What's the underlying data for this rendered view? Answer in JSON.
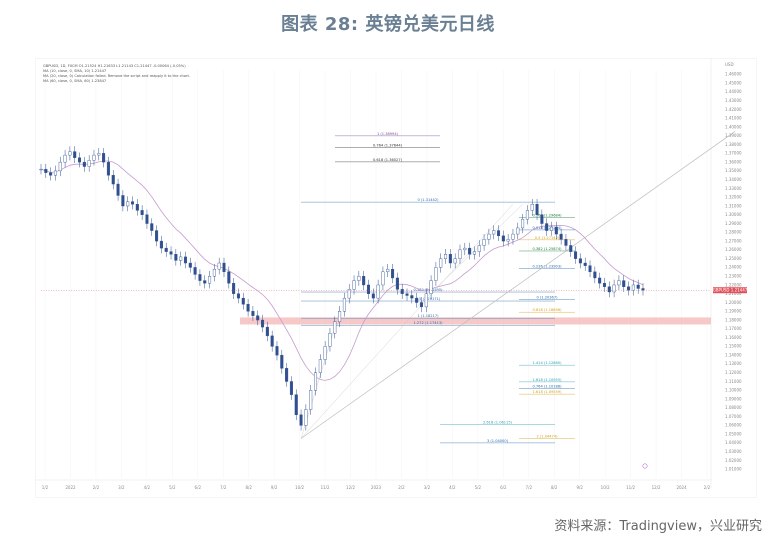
{
  "title": "图表 28: 英镑兑美元日线",
  "source": "资料来源：Tradingview，兴业研究",
  "colors": {
    "candle": "#2f4f8f",
    "ma": "#c59bd0",
    "trend": "#bdbdbd",
    "zone": "#f4b6b6",
    "price_tag": "#e0505a"
  },
  "chart_data": {
    "type": "line",
    "title": "",
    "currency": "USD",
    "x_ticks": [
      "1/2",
      "2022",
      "2/2",
      "3/2",
      "4/2",
      "5/2",
      "6/2",
      "7/2",
      "8/2",
      "9/2",
      "10/2",
      "11/2",
      "12/2",
      "2023",
      "2/2",
      "3/2",
      "4/2",
      "5/2",
      "6/2",
      "7/2",
      "8/2",
      "9/2",
      "10/2",
      "11/2",
      "12/2",
      "2024",
      "2/2"
    ],
    "y_ticks": [
      "1.46000",
      "1.45000",
      "1.44000",
      "1.43000",
      "1.42000",
      "1.41000",
      "1.40000",
      "1.39000",
      "1.38000",
      "1.37000",
      "1.36000",
      "1.35000",
      "1.34000",
      "1.33000",
      "1.32000",
      "1.31000",
      "1.30000",
      "1.29000",
      "1.28000",
      "1.27000",
      "1.26000",
      "1.25000",
      "1.24000",
      "1.23000",
      "1.22000",
      "1.21000",
      "1.20000",
      "1.19000",
      "1.18000",
      "1.17000",
      "1.16000",
      "1.15000",
      "1.14000",
      "1.13000",
      "1.12000",
      "1.11000",
      "1.10000",
      "1.09000",
      "1.08000",
      "1.07000",
      "1.06000",
      "1.05000",
      "1.04000",
      "1.03000",
      "1.02000",
      "1.01000"
    ],
    "ylim": [
      1.0,
      1.465
    ],
    "legend": [
      "GBPUSD, 1D, FXCM  O1.21524  H1.21633  L1.21143  C1.21447  -0.00064 (-0.05%)",
      "MA (10, close, 0, SMA, 10)  1.21447",
      "MA (20, close, 0) Calculation failed. Remove the script and reapply it to the chart.",
      "MA (60, close, 0, SMA, 60)  1.23847"
    ],
    "price_tag": "GBPUSD  1.21447",
    "series": [
      {
        "name": "GBPUSD",
        "x": [
          0,
          1,
          2,
          3,
          4,
          5,
          6,
          7,
          8,
          9,
          10,
          11,
          12,
          13,
          14,
          15,
          16,
          17,
          18,
          19,
          20,
          21,
          22,
          23,
          24,
          25,
          26,
          27,
          28,
          29,
          30,
          31,
          32,
          33,
          34,
          35,
          36,
          37,
          38,
          39,
          40,
          41,
          42,
          43,
          44,
          45,
          46,
          47,
          48,
          49,
          50,
          51,
          52,
          53,
          54,
          55,
          56,
          57,
          58,
          59,
          60,
          61,
          62,
          63,
          64,
          65,
          66,
          67,
          68,
          69,
          70,
          71,
          72,
          73,
          74,
          75,
          76,
          77,
          78,
          79,
          80,
          81,
          82,
          83,
          84,
          85,
          86,
          87,
          88,
          89,
          90,
          91,
          92,
          93,
          94,
          95,
          96,
          97,
          98,
          99,
          100,
          101,
          102,
          103,
          104,
          105,
          106,
          107,
          108,
          109,
          110,
          111,
          112,
          113,
          114,
          115,
          116,
          117,
          118,
          119,
          120,
          121,
          122,
          123,
          124,
          125
        ],
        "close": [
          1.352,
          1.348,
          1.345,
          1.35,
          1.36,
          1.368,
          1.372,
          1.365,
          1.36,
          1.355,
          1.362,
          1.368,
          1.37,
          1.36,
          1.345,
          1.335,
          1.322,
          1.31,
          1.315,
          1.312,
          1.305,
          1.3,
          1.29,
          1.282,
          1.27,
          1.262,
          1.258,
          1.255,
          1.248,
          1.252,
          1.245,
          1.24,
          1.232,
          1.225,
          1.222,
          1.23,
          1.238,
          1.245,
          1.235,
          1.222,
          1.21,
          1.205,
          1.198,
          1.19,
          1.185,
          1.18,
          1.172,
          1.162,
          1.15,
          1.14,
          1.125,
          1.11,
          1.095,
          1.072,
          1.06,
          1.078,
          1.1,
          1.12,
          1.135,
          1.15,
          1.165,
          1.178,
          1.19,
          1.205,
          1.215,
          1.225,
          1.23,
          1.22,
          1.21,
          1.205,
          1.22,
          1.235,
          1.238,
          1.228,
          1.215,
          1.21,
          1.208,
          1.205,
          1.2,
          1.195,
          1.21,
          1.225,
          1.24,
          1.25,
          1.255,
          1.245,
          1.25,
          1.26,
          1.262,
          1.255,
          1.258,
          1.265,
          1.272,
          1.278,
          1.282,
          1.276,
          1.27,
          1.272,
          1.278,
          1.285,
          1.295,
          1.305,
          1.312,
          1.3,
          1.29,
          1.282,
          1.286,
          1.278,
          1.272,
          1.265,
          1.258,
          1.25,
          1.245,
          1.242,
          1.235,
          1.228,
          1.222,
          1.218,
          1.212,
          1.22,
          1.225,
          1.218,
          1.214,
          1.22,
          1.216,
          1.214
        ]
      }
    ],
    "annotations": [
      "1 (1.38994)",
      "0.764 (1.37644)",
      "0.618 (1.36027)",
      "0 (1.31442)",
      "0.764 (1.29684)",
      "0.618 (1.28274)",
      "0.5 (1.27142)",
      "0.382 (1.25874)",
      "0.236 (1.23903)",
      "0 (1.20367)",
      "0.382 (1.21195)",
      "0.5 (1.20171)",
      "0.618 (1.18896)",
      "1 (1.18217)",
      "1.272 (1.17413)",
      "1.414 (1.12860)",
      "1.618 (1.10955)",
      "0.764 (1.10188)",
      "1.618 (1.09559)",
      "2 (1.04474)",
      "2.618 (1.06115)",
      "3 (1.04000)"
    ]
  }
}
